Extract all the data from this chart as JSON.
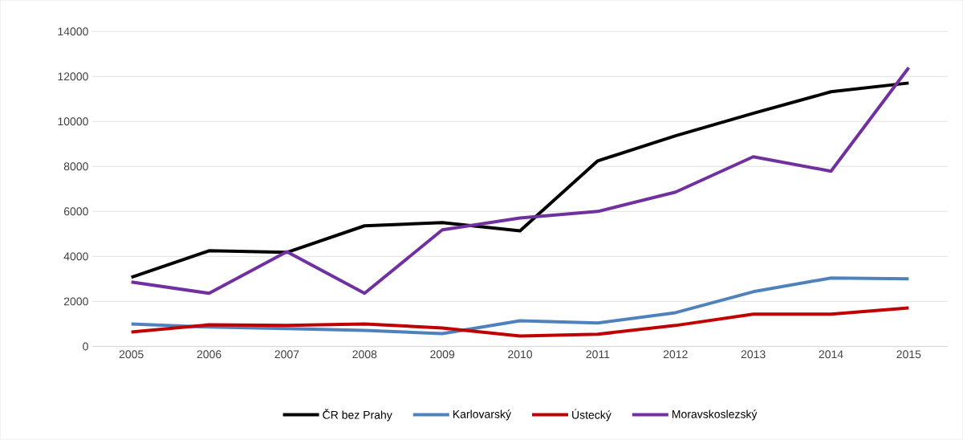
{
  "chart_data": {
    "type": "line",
    "categories": [
      "2005",
      "2006",
      "2007",
      "2008",
      "2009",
      "2010",
      "2011",
      "2012",
      "2013",
      "2014",
      "2015"
    ],
    "series": [
      {
        "name": "ČR bez Prahy",
        "color": "#000000",
        "values": [
          3070,
          4250,
          4180,
          5360,
          5500,
          5140,
          8250,
          9360,
          10360,
          11320,
          11710
        ]
      },
      {
        "name": "Karlovarský",
        "color": "#4f81bd",
        "values": [
          1000,
          860,
          790,
          710,
          570,
          1140,
          1040,
          1500,
          2430,
          3040,
          3000
        ]
      },
      {
        "name": "Ústecký",
        "color": "#c00000",
        "values": [
          640,
          960,
          930,
          1000,
          820,
          460,
          540,
          930,
          1430,
          1430,
          1710
        ]
      },
      {
        "name": "Moravskoslezský",
        "color": "#7030a0",
        "values": [
          2860,
          2360,
          4210,
          2360,
          5180,
          5710,
          6000,
          6860,
          8430,
          7790,
          12390
        ]
      }
    ],
    "ylim": [
      0,
      14000
    ],
    "yticks": [
      0,
      2000,
      4000,
      6000,
      8000,
      10000,
      12000,
      14000
    ],
    "grid": "y",
    "legend": "bottom",
    "marker": "none",
    "line_style": "solid"
  }
}
